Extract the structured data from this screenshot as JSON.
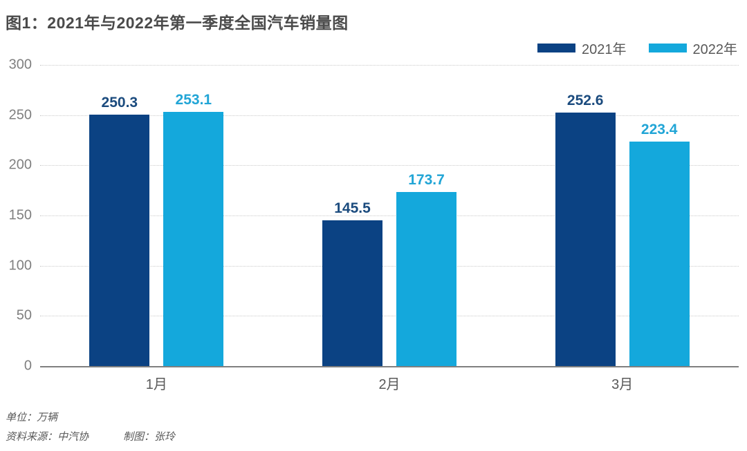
{
  "title": "图1：2021年与2022年第一季度全国汽车销量图",
  "footer": {
    "unit": "单位：万辆",
    "source": "资料来源：中汽协",
    "author": "制图：张玲"
  },
  "chart_data": {
    "type": "bar",
    "title": "图1：2021年与2022年第一季度全国汽车销量图",
    "categories": [
      "1月",
      "2月",
      "3月"
    ],
    "series": [
      {
        "name": "2021年",
        "color": "#0b4283",
        "label_color": "#1b4b7e",
        "values": [
          250.3,
          145.5,
          252.6
        ]
      },
      {
        "name": "2022年",
        "color": "#14a8dc",
        "label_color": "#21a5d6",
        "values": [
          253.1,
          173.7,
          223.4
        ]
      }
    ],
    "xlabel": "",
    "ylabel": "",
    "ylim": [
      0,
      300
    ],
    "yticks": [
      0,
      50,
      100,
      150,
      200,
      250,
      300
    ],
    "grid": "horizontal-dotted",
    "legend_position": "top-right",
    "value_labels": "above-bars"
  }
}
